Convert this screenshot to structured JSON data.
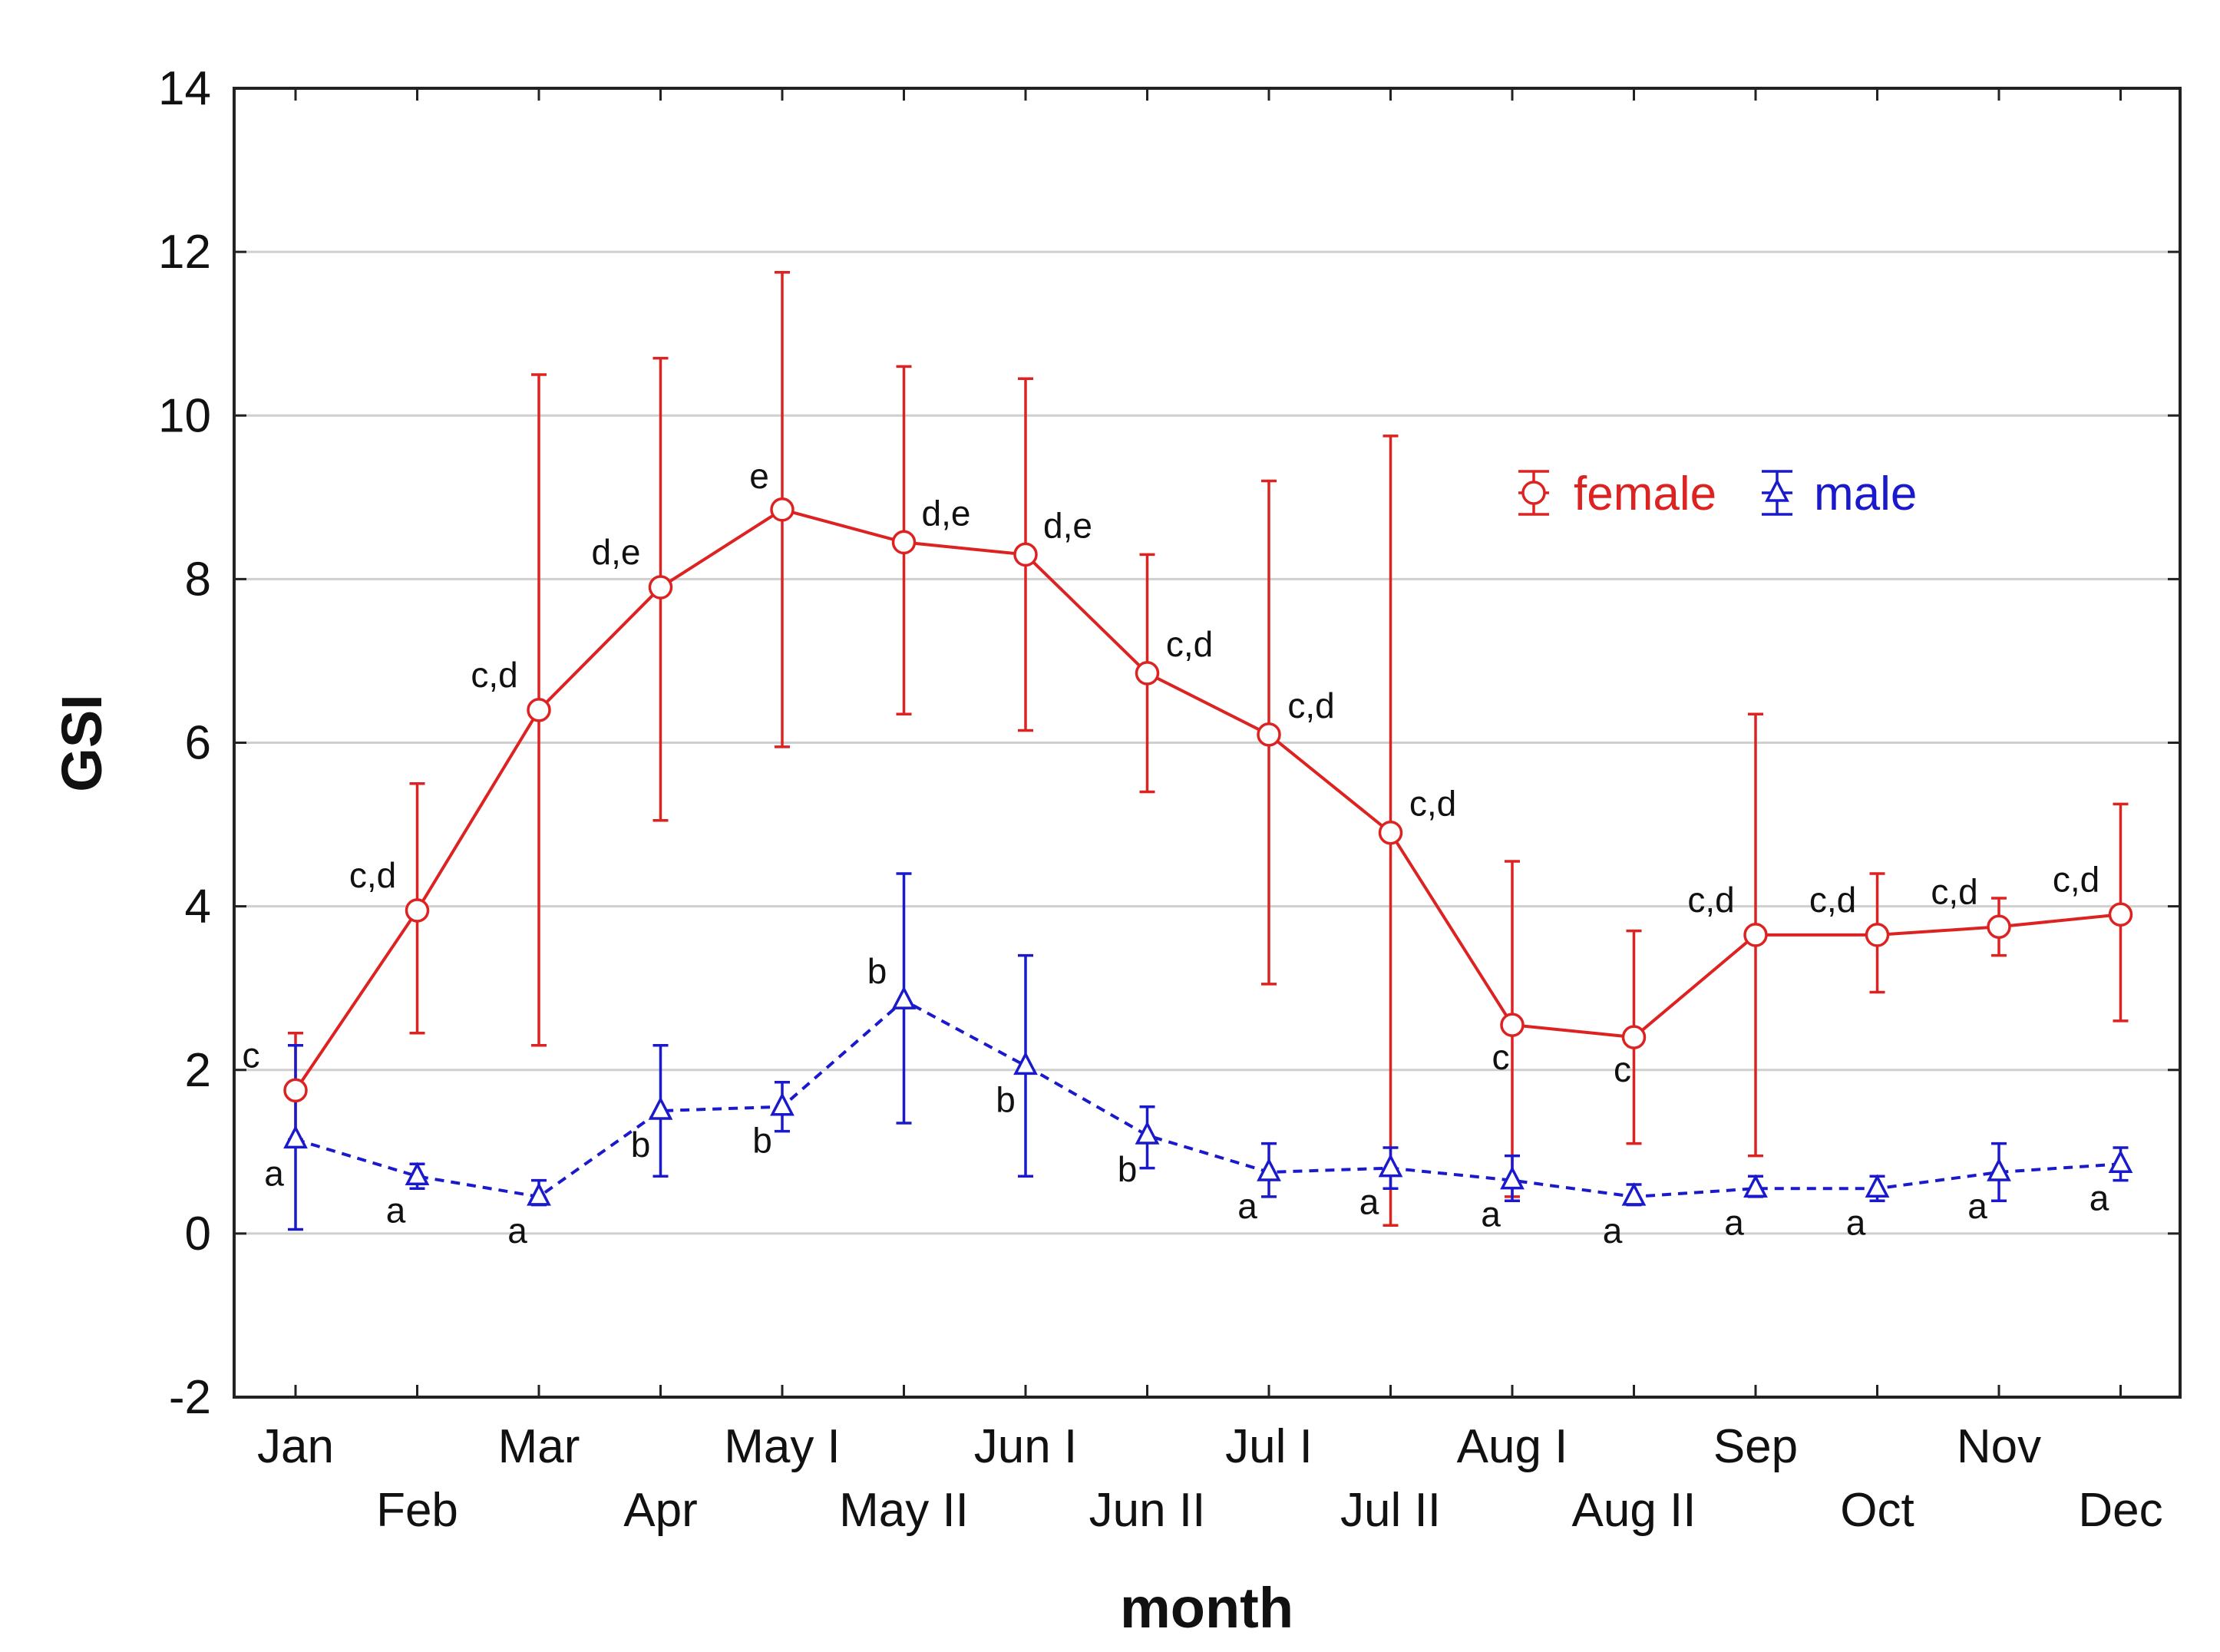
{
  "chart_data": {
    "type": "line",
    "title": "",
    "xlabel": "month",
    "ylabel": "GSI",
    "ylim": [
      -2,
      14
    ],
    "yticks": [
      "-2",
      "0",
      "2",
      "4",
      "6",
      "8",
      "10",
      "12",
      "14"
    ],
    "grid": true,
    "legend_position": "top-right",
    "categories": [
      "Jan",
      "Feb",
      "Mar",
      "Apr",
      "May I",
      "May II",
      "Jun I",
      "Jun II",
      "Jul I",
      "Jul II",
      "Aug I",
      "Aug II",
      "Sep",
      "Oct",
      "Nov",
      "Dec"
    ],
    "series": [
      {
        "name": "female",
        "color": "#dd2222",
        "marker": "circle",
        "line_style": "solid",
        "values": [
          1.75,
          3.95,
          6.4,
          7.9,
          8.85,
          8.45,
          8.3,
          6.85,
          6.1,
          4.9,
          2.55,
          2.4,
          3.65,
          3.65,
          3.75,
          3.9
        ],
        "err_low": [
          1.15,
          2.45,
          2.3,
          5.05,
          5.95,
          6.35,
          6.15,
          5.4,
          3.05,
          0.1,
          0.45,
          1.1,
          0.95,
          2.95,
          3.4,
          2.6
        ],
        "err_high": [
          2.45,
          5.5,
          10.5,
          10.7,
          11.75,
          10.6,
          10.45,
          8.3,
          9.2,
          9.75,
          4.55,
          3.7,
          6.35,
          4.4,
          4.1,
          5.25
        ],
        "letters": [
          "c",
          "c,d",
          "c,d",
          "d,e",
          "e",
          "d,e",
          "d,e",
          "c,d",
          "c,d",
          "c,d",
          "c",
          "c",
          "c,d",
          "c,d",
          "c,d",
          "c,d"
        ]
      },
      {
        "name": "male",
        "color": "#1a1acc",
        "marker": "triangle",
        "line_style": "dashed",
        "values": [
          1.15,
          0.7,
          0.45,
          1.5,
          1.55,
          2.85,
          2.05,
          1.2,
          0.75,
          0.8,
          0.65,
          0.45,
          0.55,
          0.55,
          0.75,
          0.85
        ],
        "err_low": [
          0.05,
          0.55,
          0.35,
          0.7,
          1.25,
          1.35,
          0.7,
          0.8,
          0.45,
          0.55,
          0.4,
          0.35,
          0.45,
          0.4,
          0.4,
          0.65
        ],
        "err_high": [
          2.3,
          0.85,
          0.65,
          2.3,
          1.85,
          4.4,
          3.4,
          1.55,
          1.1,
          1.05,
          0.95,
          0.6,
          0.7,
          0.7,
          1.1,
          1.05
        ],
        "letters": [
          "a",
          "a",
          "a",
          "b",
          "b",
          "b",
          "b",
          "b",
          "a",
          "a",
          "a",
          "a",
          "a",
          "a",
          "a",
          "a"
        ]
      }
    ]
  }
}
